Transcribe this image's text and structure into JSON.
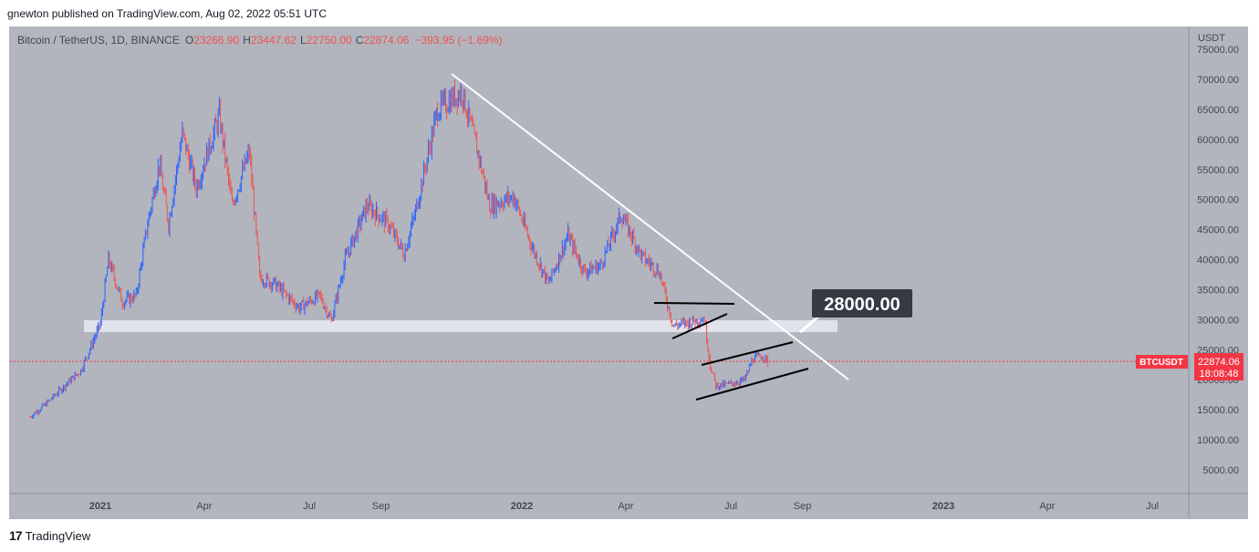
{
  "header": {
    "published": "gnewton published on TradingView.com, Aug 02, 2022 05:51 UTC"
  },
  "legend": {
    "symbol": "Bitcoin / TetherUS, 1D, BINANCE",
    "o_label": "O",
    "o": "23266.90",
    "h_label": "H",
    "h": "23447.62",
    "l_label": "L",
    "l": "22750.00",
    "c_label": "C",
    "c": "22874.06",
    "change": "−393.95 (−1.69%)"
  },
  "price_axis": {
    "currency": "USDT",
    "ticks": [
      "75000.00",
      "70000.00",
      "65000.00",
      "60000.00",
      "55000.00",
      "50000.00",
      "45000.00",
      "40000.00",
      "35000.00",
      "30000.00",
      "25000.00",
      "20000.00",
      "15000.00",
      "10000.00",
      "5000.00"
    ]
  },
  "time_axis": {
    "labels": [
      {
        "text": "2021",
        "bold": true
      },
      {
        "text": "Apr",
        "bold": false
      },
      {
        "text": "Jul",
        "bold": false
      },
      {
        "text": "Sep",
        "bold": false
      },
      {
        "text": "2022",
        "bold": true
      },
      {
        "text": "Apr",
        "bold": false
      },
      {
        "text": "Jul",
        "bold": false
      },
      {
        "text": "Sep",
        "bold": false
      },
      {
        "text": "2023",
        "bold": true
      },
      {
        "text": "Apr",
        "bold": false
      },
      {
        "text": "Jul",
        "bold": false
      }
    ]
  },
  "badges": {
    "symbol_tag": "BTCUSDT",
    "last_price": "22874.06",
    "countdown": "18:08:48"
  },
  "annotation": {
    "target_label": "28000.00"
  },
  "footer": {
    "brand": "TradingView",
    "logo_mark": "17"
  },
  "colors": {
    "background": "#b2b5be",
    "up": "#2962ff",
    "down": "#ef5350",
    "trendline": "#ffffff",
    "channel": "#000000",
    "support_zone": "#e0e3eb",
    "price_line": "#f23645",
    "label_box": "#363a45"
  },
  "chart_data": {
    "type": "candlestick",
    "title": "Bitcoin / TetherUS, 1D, BINANCE",
    "ylim": [
      0,
      77000
    ],
    "last_close": 22874.06,
    "series": [
      {
        "date": "2020-11-01",
        "close": 13800
      },
      {
        "date": "2020-11-15",
        "close": 16000
      },
      {
        "date": "2020-12-01",
        "close": 19000
      },
      {
        "date": "2020-12-15",
        "close": 21500
      },
      {
        "date": "2021-01-01",
        "close": 29300
      },
      {
        "date": "2021-01-08",
        "close": 40000
      },
      {
        "date": "2021-01-20",
        "close": 33000
      },
      {
        "date": "2021-02-01",
        "close": 34000
      },
      {
        "date": "2021-02-10",
        "close": 45000
      },
      {
        "date": "2021-02-21",
        "close": 56000
      },
      {
        "date": "2021-03-01",
        "close": 46000
      },
      {
        "date": "2021-03-13",
        "close": 61000
      },
      {
        "date": "2021-03-25",
        "close": 52000
      },
      {
        "date": "2021-04-14",
        "close": 64000
      },
      {
        "date": "2021-04-25",
        "close": 49000
      },
      {
        "date": "2021-05-10",
        "close": 58000
      },
      {
        "date": "2021-05-19",
        "close": 37000
      },
      {
        "date": "2021-06-01",
        "close": 36000
      },
      {
        "date": "2021-06-22",
        "close": 32000
      },
      {
        "date": "2021-07-10",
        "close": 34000
      },
      {
        "date": "2021-07-20",
        "close": 29800
      },
      {
        "date": "2021-08-01",
        "close": 40000
      },
      {
        "date": "2021-08-20",
        "close": 49000
      },
      {
        "date": "2021-09-07",
        "close": 46000
      },
      {
        "date": "2021-09-21",
        "close": 41000
      },
      {
        "date": "2021-10-01",
        "close": 48000
      },
      {
        "date": "2021-10-20",
        "close": 65000
      },
      {
        "date": "2021-11-10",
        "close": 68000
      },
      {
        "date": "2021-11-25",
        "close": 57000
      },
      {
        "date": "2021-12-04",
        "close": 49000
      },
      {
        "date": "2021-12-25",
        "close": 50500
      },
      {
        "date": "2022-01-10",
        "close": 42000
      },
      {
        "date": "2022-01-24",
        "close": 36000
      },
      {
        "date": "2022-02-10",
        "close": 44000
      },
      {
        "date": "2022-02-24",
        "close": 38000
      },
      {
        "date": "2022-03-10",
        "close": 39000
      },
      {
        "date": "2022-03-28",
        "close": 47500
      },
      {
        "date": "2022-04-15",
        "close": 40500
      },
      {
        "date": "2022-04-30",
        "close": 38000
      },
      {
        "date": "2022-05-12",
        "close": 29000
      },
      {
        "date": "2022-05-25",
        "close": 29500
      },
      {
        "date": "2022-06-08",
        "close": 30200
      },
      {
        "date": "2022-06-13",
        "close": 22500
      },
      {
        "date": "2022-06-18",
        "close": 19000
      },
      {
        "date": "2022-07-01",
        "close": 19300
      },
      {
        "date": "2022-07-13",
        "close": 20000
      },
      {
        "date": "2022-07-20",
        "close": 23500
      },
      {
        "date": "2022-07-29",
        "close": 24000
      },
      {
        "date": "2022-08-02",
        "close": 22874
      }
    ],
    "levels": {
      "support_zone": [
        28000,
        30000
      ],
      "target": 28000
    }
  }
}
